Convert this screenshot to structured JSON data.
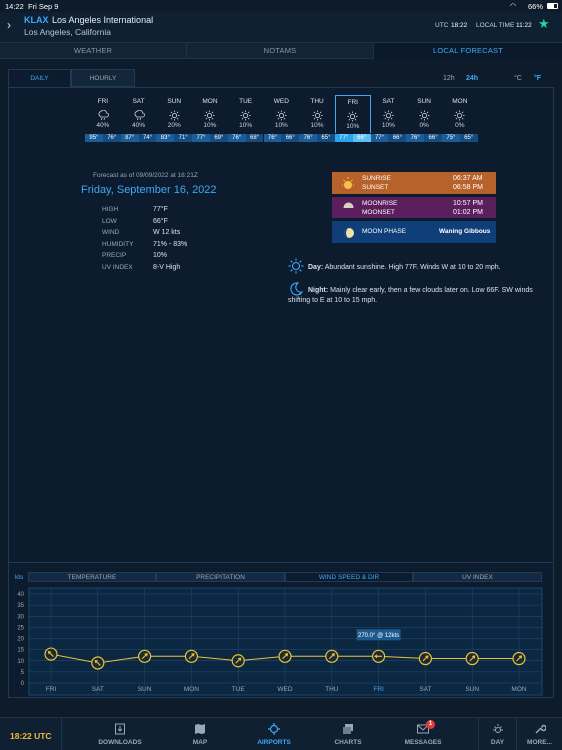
{
  "status": {
    "time": "14:22",
    "date": "Fri Sep 9",
    "battery": "66%"
  },
  "airport": {
    "code": "KLAX",
    "name": "Los Angeles International",
    "city": "Los Angeles, California",
    "utc_label": "UTC",
    "utc_time": "18:22",
    "local_label": "LOCAL TIME",
    "local_time": "11:22"
  },
  "main_tabs": [
    "WEATHER",
    "NOTAMS",
    "LOCAL FORECAST"
  ],
  "sub_tabs": [
    "DAILY",
    "HOURLY"
  ],
  "time_format": {
    "h12": "12h",
    "h24": "24h"
  },
  "units": {
    "c": "°C",
    "f": "°F"
  },
  "days": [
    {
      "day": "FRI",
      "icon": "rain-cloud-icon",
      "precip": "40%",
      "high": "95°",
      "low": "76°"
    },
    {
      "day": "SAT",
      "icon": "rain-cloud-icon",
      "precip": "40%",
      "high": "87°",
      "low": "74°"
    },
    {
      "day": "SUN",
      "icon": "sun-icon",
      "precip": "20%",
      "high": "83°",
      "low": "71°"
    },
    {
      "day": "MON",
      "icon": "sun-icon",
      "precip": "10%",
      "high": "77°",
      "low": "69°"
    },
    {
      "day": "TUE",
      "icon": "sun-icon",
      "precip": "10%",
      "high": "76°",
      "low": "68°"
    },
    {
      "day": "WED",
      "icon": "sun-icon",
      "precip": "10%",
      "high": "76°",
      "low": "66°"
    },
    {
      "day": "THU",
      "icon": "sun-icon",
      "precip": "10%",
      "high": "76°",
      "low": "65°"
    },
    {
      "day": "FRI",
      "icon": "sun-icon",
      "precip": "10%",
      "high": "77°",
      "low": "66°"
    },
    {
      "day": "SAT",
      "icon": "sun-icon",
      "precip": "10%",
      "high": "77°",
      "low": "66°"
    },
    {
      "day": "SUN",
      "icon": "sun-icon",
      "precip": "0%",
      "high": "76°",
      "low": "66°"
    },
    {
      "day": "MON",
      "icon": "sun-icon",
      "precip": "0%",
      "high": "75°",
      "low": "65°"
    }
  ],
  "detail": {
    "forecast_asof": "Forecast as of 09/09/2022 at 18:21Z",
    "date": "Friday, September 16, 2022",
    "rows": [
      {
        "label": "HIGH",
        "value": "77°F"
      },
      {
        "label": "LOW",
        "value": "66°F"
      },
      {
        "label": "WIND",
        "value": "W 12 kts"
      },
      {
        "label": "HUMIDITY",
        "value": "71% - 83%"
      },
      {
        "label": "PRECIP",
        "value": "10%"
      },
      {
        "label": "UV INDEX",
        "value": "8-V High"
      }
    ]
  },
  "astro": {
    "sunrise_label": "SUNRISE",
    "sunrise": "06:37 AM",
    "sunset_label": "SUNSET",
    "sunset": "06:58 PM",
    "moonrise_label": "MOONRISE",
    "moonrise": "10:57 PM",
    "moonset_label": "MOONSET",
    "moonset": "01:02 PM",
    "moonphase_label": "MOON PHASE",
    "moonphase": "Waning Gibbous"
  },
  "summary": {
    "day_label": "Day:",
    "day_text": "Abundant sunshine. High 77F. Winds W at 10 to 20 mph.",
    "night_label": "Night:",
    "night_text": "Mainly clear early, then a few clouds later on. Low 66F. SW winds shifting to E at 10 to 15 mph."
  },
  "chart_tabs": [
    "TEMPERATURE",
    "PRECIPITATION",
    "WIND SPEED & DIR",
    "UV INDEX"
  ],
  "chart_data": {
    "type": "line",
    "ylabel": "kts",
    "ylim": [
      0,
      40
    ],
    "yticks": [
      0,
      5,
      10,
      15,
      20,
      25,
      30,
      35,
      40
    ],
    "categories": [
      "FRI",
      "SAT",
      "SUN",
      "MON",
      "TUE",
      "WED",
      "THU",
      "FRI",
      "SAT",
      "SUN",
      "MON"
    ],
    "values": [
      13,
      9,
      12,
      12,
      10,
      12,
      12,
      12,
      11,
      11,
      11
    ],
    "directions": [
      315,
      315,
      45,
      45,
      45,
      45,
      45,
      270,
      45,
      45,
      45
    ],
    "tooltip": "270.0° @ 12kts",
    "selected_index": 7,
    "grid": true
  },
  "bottom_nav": {
    "utc": "18:22 UTC",
    "items": [
      "DOWNLOADS",
      "MAP",
      "AIRPORTS",
      "CHARTS",
      "MESSAGES",
      "DAY",
      "MORE..."
    ],
    "messages_badge": "1"
  }
}
